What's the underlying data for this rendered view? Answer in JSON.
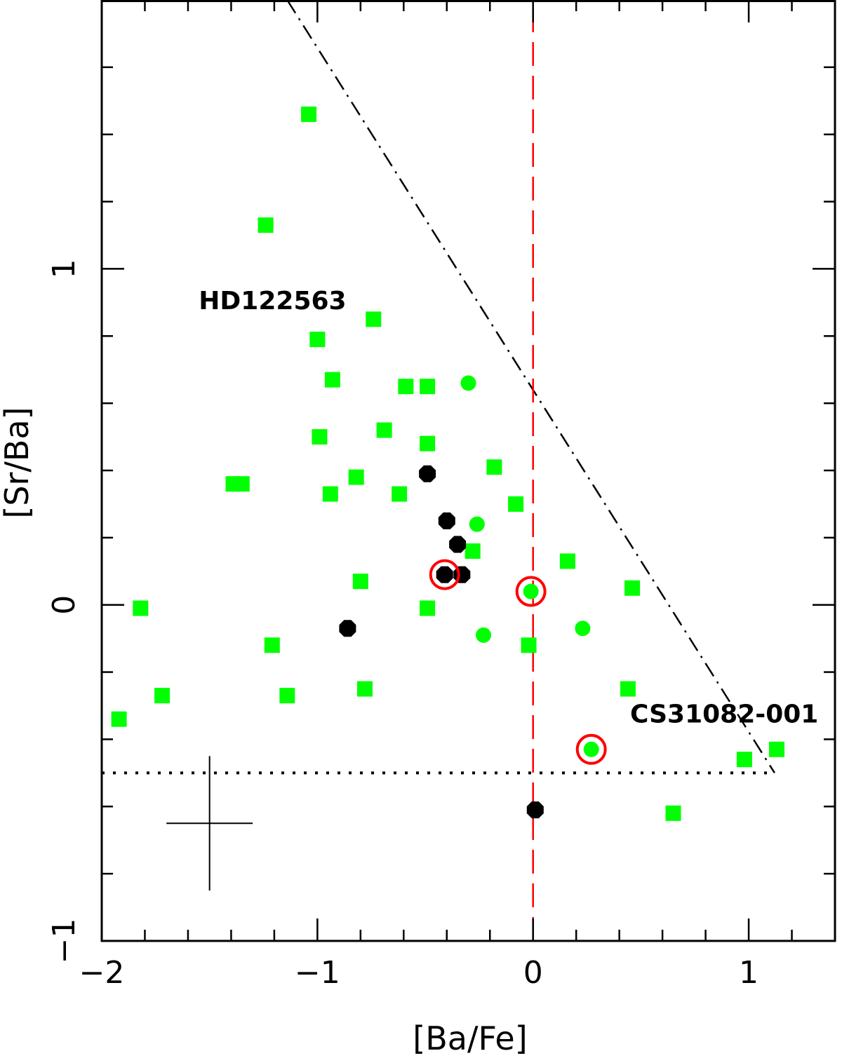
{
  "chart_data": {
    "type": "scatter",
    "title": "",
    "xlabel": "[Ba/Fe]",
    "ylabel": "[Sr/Ba]",
    "xlim": [
      -2.0,
      1.4
    ],
    "ylim": [
      -1.0,
      1.8
    ],
    "x_ticks": [
      {
        "value": -2,
        "label": "−2"
      },
      {
        "value": -1,
        "label": "−1"
      },
      {
        "value": 0,
        "label": "0"
      },
      {
        "value": 1,
        "label": "1"
      }
    ],
    "y_ticks": [
      {
        "value": -1,
        "label": "−1"
      },
      {
        "value": 0,
        "label": "0"
      },
      {
        "value": 1,
        "label": "1"
      }
    ],
    "grid": false,
    "legend": "none",
    "colors": {
      "squares": "#00ff00",
      "circles": "#00ff00",
      "black_points": "#000000",
      "highlight_rings": "#ff0000",
      "solar_line": "#ff0000",
      "lines": "#000000"
    },
    "series": [
      {
        "marker": "square",
        "points": [
          [
            -1.04,
            1.46
          ],
          [
            -1.24,
            1.13
          ],
          [
            -0.74,
            0.85
          ],
          [
            -1.0,
            0.79
          ],
          [
            -0.93,
            0.67
          ],
          [
            -0.59,
            0.65
          ],
          [
            -0.49,
            0.65
          ],
          [
            -0.69,
            0.52
          ],
          [
            -0.99,
            0.5
          ],
          [
            -0.49,
            0.48
          ],
          [
            -1.35,
            0.36
          ],
          [
            -1.39,
            0.36
          ],
          [
            -0.82,
            0.38
          ],
          [
            -0.94,
            0.33
          ],
          [
            -0.62,
            0.33
          ],
          [
            -0.18,
            0.41
          ],
          [
            -0.08,
            0.3
          ],
          [
            -0.28,
            0.16
          ],
          [
            -0.8,
            0.07
          ],
          [
            0.16,
            0.13
          ],
          [
            0.46,
            0.05
          ],
          [
            -1.82,
            -0.01
          ],
          [
            -0.49,
            -0.01
          ],
          [
            -1.21,
            -0.12
          ],
          [
            -0.02,
            -0.12
          ],
          [
            -1.72,
            -0.27
          ],
          [
            -1.14,
            -0.27
          ],
          [
            -0.78,
            -0.25
          ],
          [
            0.44,
            -0.25
          ],
          [
            -1.92,
            -0.34
          ],
          [
            0.98,
            -0.46
          ],
          [
            1.13,
            -0.43
          ],
          [
            0.65,
            -0.62
          ]
        ]
      },
      {
        "marker": "circle",
        "points": [
          [
            -0.3,
            0.66
          ],
          [
            -0.26,
            0.24
          ],
          [
            -0.23,
            -0.09
          ],
          [
            0.23,
            -0.07
          ],
          [
            -0.01,
            0.04
          ],
          [
            0.27,
            -0.43
          ]
        ]
      },
      {
        "marker": "octagon",
        "points": [
          [
            -0.49,
            0.39
          ],
          [
            -0.4,
            0.25
          ],
          [
            -0.35,
            0.18
          ],
          [
            -0.41,
            0.09
          ],
          [
            -0.33,
            0.09
          ],
          [
            -0.86,
            -0.07
          ],
          [
            0.01,
            -0.61
          ]
        ]
      },
      {
        "marker": "ring",
        "points": [
          [
            -0.41,
            0.09
          ],
          [
            -0.01,
            0.04
          ],
          [
            0.27,
            -0.43
          ]
        ]
      }
    ],
    "reference_lines": [
      {
        "style": "dash-dot",
        "points": [
          [
            -1.14,
            1.8
          ],
          [
            1.12,
            -0.5
          ]
        ]
      },
      {
        "style": "dotted",
        "points": [
          [
            -2.0,
            -0.5
          ],
          [
            1.12,
            -0.5
          ]
        ]
      },
      {
        "style": "dashed",
        "color": "red",
        "points": [
          [
            0,
            -1.0
          ],
          [
            0,
            1.8
          ]
        ]
      }
    ],
    "error_bar": {
      "x": -1.5,
      "y": -0.65,
      "x_error": 0.2,
      "y_error": 0.2
    },
    "annotations": [
      {
        "text": "HD122563",
        "x": -1.55,
        "y": 0.88
      },
      {
        "text": "CS31082-001",
        "x": 0.45,
        "y": -0.35
      }
    ]
  }
}
